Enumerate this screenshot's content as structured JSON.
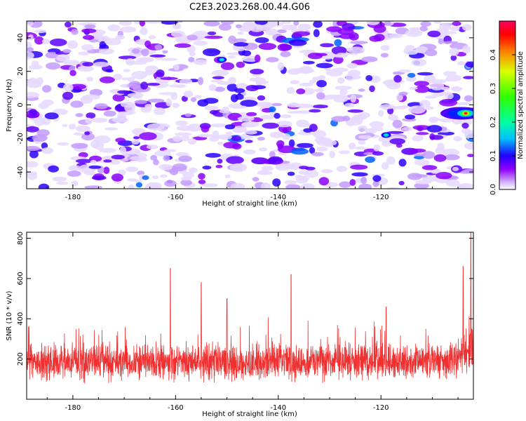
{
  "title": "C2E3.2023.268.00.44.G06",
  "chart_data": [
    {
      "type": "heatmap",
      "xlabel": "Height of straight line (km)",
      "ylabel": "Frequency (Hz)",
      "xlim": [
        -189,
        -102
      ],
      "ylim": [
        -50,
        50
      ],
      "xticks": [
        -180,
        -160,
        -140,
        -120
      ],
      "yticks": [
        -40,
        -20,
        0,
        20,
        40
      ],
      "colorbar": {
        "label": "Normalized spectral amplitude",
        "range": [
          0,
          0.5
        ],
        "ticks": [
          0.0,
          0.1,
          0.2,
          0.3,
          0.4
        ],
        "tick_labels": [
          "0.0",
          "0.1",
          "0.2",
          "0.3",
          "0.4"
        ],
        "colors": [
          "#ffffff",
          "#c8a8ff",
          "#8f00ff",
          "#5000ff",
          "#0000ff",
          "#00ffff",
          "#00ff00",
          "#ffff00",
          "#ff0000"
        ]
      },
      "background_level": "mostly 0.0–0.12 (white to violet/blue speckle)",
      "peak": {
        "x": -103.5,
        "y": -5,
        "value": 0.45
      },
      "secondary_peaks": [
        {
          "x": -151,
          "y": 27,
          "value": 0.15
        },
        {
          "x": -119,
          "y": -18,
          "value": 0.14
        },
        {
          "x": -105,
          "y": -6,
          "value": 0.2
        }
      ]
    },
    {
      "type": "line",
      "xlabel": "Height of straight line (km)",
      "ylabel": "SNR (10 * v/v)",
      "xlim": [
        -189,
        -102
      ],
      "ylim": [
        0,
        830
      ],
      "xticks": [
        -180,
        -160,
        -140,
        -120
      ],
      "yticks": [
        200,
        400,
        600,
        800
      ],
      "color": "#f03030",
      "baseline_mean": 185,
      "baseline_spread": 90,
      "spikes": [
        {
          "x": -161,
          "y": 650
        },
        {
          "x": -155,
          "y": 580
        },
        {
          "x": -150,
          "y": 500
        },
        {
          "x": -137.5,
          "y": 620
        },
        {
          "x": -119,
          "y": 460
        },
        {
          "x": -104,
          "y": 660
        },
        {
          "x": -102.5,
          "y": 830
        }
      ]
    }
  ]
}
